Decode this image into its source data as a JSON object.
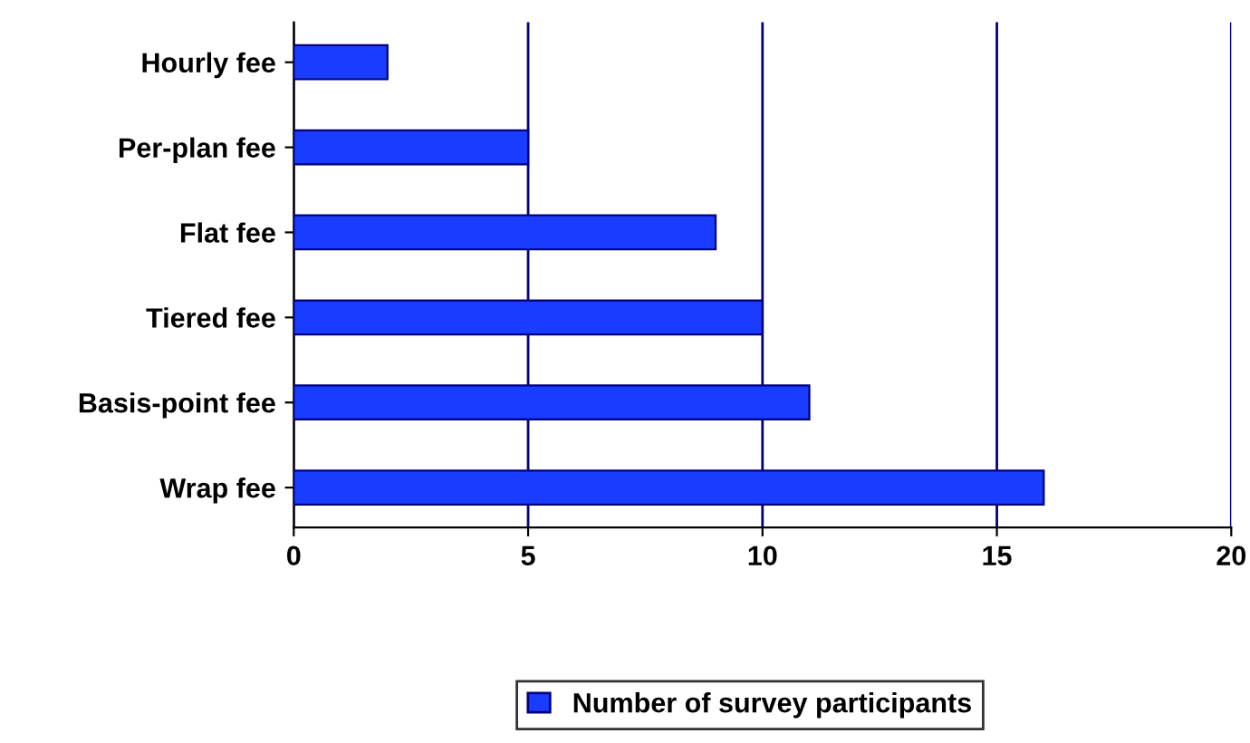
{
  "chart_data": {
    "type": "bar",
    "orientation": "horizontal",
    "categories": [
      "Hourly fee",
      "Per-plan fee",
      "Flat fee",
      "Tiered fee",
      "Basis-point fee",
      "Wrap fee"
    ],
    "series": [
      {
        "name": "Number of survey participants",
        "color": "#1a3cff",
        "values": [
          2,
          5,
          9,
          10,
          11,
          16
        ]
      }
    ],
    "xlim": [
      0,
      20
    ],
    "xticks": [
      0,
      5,
      10,
      15,
      20
    ],
    "grid": "x",
    "legend": "bottom"
  }
}
